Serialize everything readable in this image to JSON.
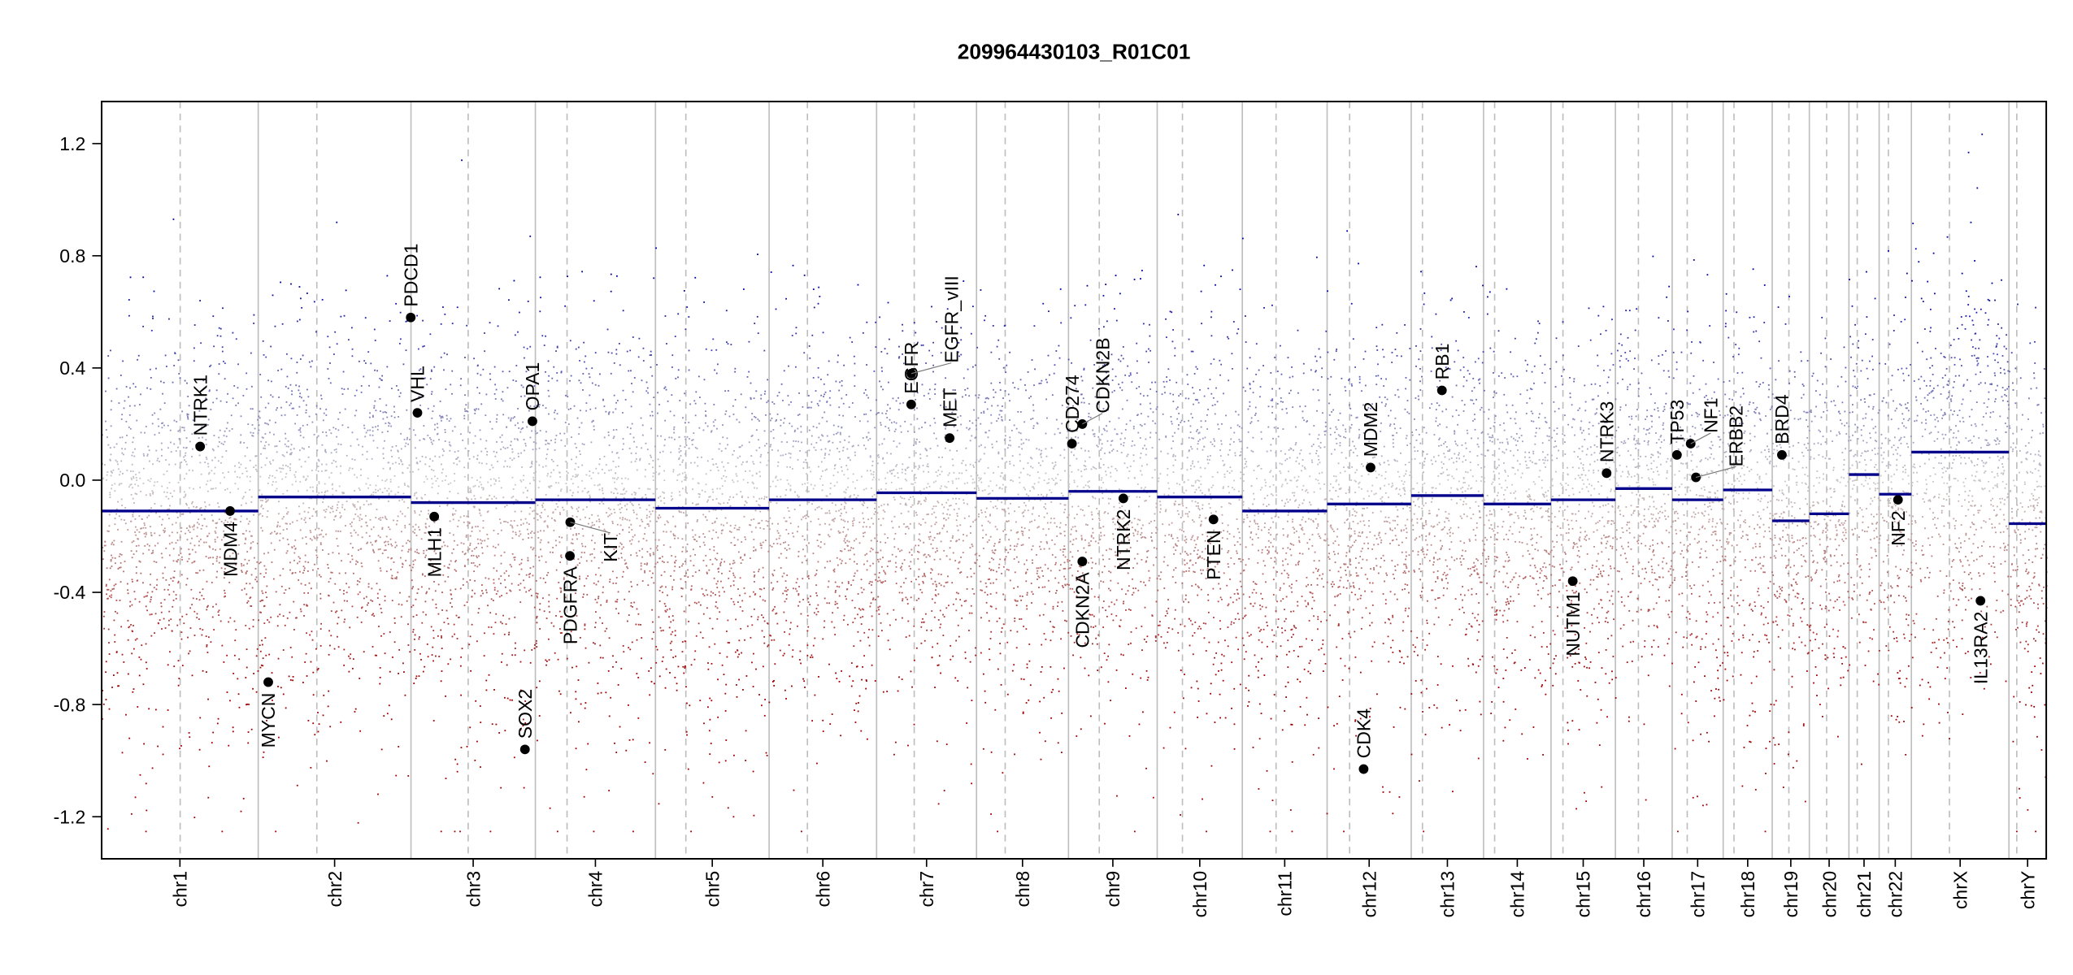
{
  "chart_data": {
    "type": "scatter",
    "title": "209964430103_R01C01",
    "xlabel": "",
    "ylabel": "",
    "ylim": [
      -1.35,
      1.35
    ],
    "y_ticks": [
      "-1.2",
      "-0.8",
      "-0.4",
      "0.0",
      "0.4",
      "0.8",
      "1.2"
    ],
    "y_tick_values": [
      -1.2,
      -0.8,
      -0.4,
      0.0,
      0.4,
      0.8,
      1.2
    ],
    "point_floor": -1.25,
    "colors": {
      "gain": "#0000A0",
      "neutral": "#C8C8C8",
      "loss": "#A00000",
      "segment": "#00008B",
      "gene_point": "#000000",
      "chrom_boundary": "#BEBEBE",
      "centromere": "#BEBEBE"
    },
    "chromosomes": [
      {
        "name": "chr1",
        "length_mb": 249.25,
        "centromere_mb": 125.0,
        "segment_mean": -0.11
      },
      {
        "name": "chr2",
        "length_mb": 243.2,
        "centromere_mb": 93.3,
        "segment_mean": -0.06
      },
      {
        "name": "chr3",
        "length_mb": 198.0,
        "centromere_mb": 91.0,
        "segment_mean": -0.08
      },
      {
        "name": "chr4",
        "length_mb": 191.15,
        "centromere_mb": 50.4,
        "segment_mean": -0.07
      },
      {
        "name": "chr5",
        "length_mb": 180.9,
        "centromere_mb": 48.4,
        "segment_mean": -0.1
      },
      {
        "name": "chr6",
        "length_mb": 171.1,
        "centromere_mb": 61.0,
        "segment_mean": -0.07
      },
      {
        "name": "chr7",
        "length_mb": 159.1,
        "centromere_mb": 59.9,
        "segment_mean": -0.045
      },
      {
        "name": "chr8",
        "length_mb": 146.4,
        "centromere_mb": 45.6,
        "segment_mean": -0.065
      },
      {
        "name": "chr9",
        "length_mb": 141.2,
        "centromere_mb": 49.0,
        "segment_mean": -0.04
      },
      {
        "name": "chr10",
        "length_mb": 135.5,
        "centromere_mb": 40.2,
        "segment_mean": -0.06
      },
      {
        "name": "chr11",
        "length_mb": 135.0,
        "centromere_mb": 53.7,
        "segment_mean": -0.11
      },
      {
        "name": "chr12",
        "length_mb": 133.85,
        "centromere_mb": 35.8,
        "segment_mean": -0.085
      },
      {
        "name": "chr13",
        "length_mb": 115.2,
        "centromere_mb": 17.9,
        "segment_mean": -0.055
      },
      {
        "name": "chr14",
        "length_mb": 107.35,
        "centromere_mb": 17.6,
        "segment_mean": -0.085
      },
      {
        "name": "chr15",
        "length_mb": 102.5,
        "centromere_mb": 19.0,
        "segment_mean": -0.07
      },
      {
        "name": "chr16",
        "length_mb": 90.35,
        "centromere_mb": 36.6,
        "segment_mean": -0.03
      },
      {
        "name": "chr17",
        "length_mb": 81.2,
        "centromere_mb": 24.0,
        "segment_mean": -0.07
      },
      {
        "name": "chr18",
        "length_mb": 78.1,
        "centromere_mb": 17.2,
        "segment_mean": -0.035
      },
      {
        "name": "chr19",
        "length_mb": 59.1,
        "centromere_mb": 26.5,
        "segment_mean": -0.145
      },
      {
        "name": "chr20",
        "length_mb": 63.0,
        "centromere_mb": 27.5,
        "segment_mean": -0.12
      },
      {
        "name": "chr21",
        "length_mb": 48.1,
        "centromere_mb": 13.2,
        "segment_mean": 0.02
      },
      {
        "name": "chr22",
        "length_mb": 51.3,
        "centromere_mb": 14.7,
        "segment_mean": -0.05
      },
      {
        "name": "chrX",
        "length_mb": 155.3,
        "centromere_mb": 60.6,
        "segment_mean": 0.1
      },
      {
        "name": "chrY",
        "length_mb": 59.4,
        "centromere_mb": 12.5,
        "segment_mean": -0.155
      }
    ],
    "genes": [
      {
        "name": "NTRK1",
        "chrom": "chr1",
        "pos_mb": 156.8,
        "value": 0.12,
        "label": "above"
      },
      {
        "name": "MDM4",
        "chrom": "chr1",
        "pos_mb": 204.5,
        "value": -0.11,
        "label": "below"
      },
      {
        "name": "MYCN",
        "chrom": "chr2",
        "pos_mb": 16.0,
        "value": -0.72,
        "label": "below"
      },
      {
        "name": "PDCD1",
        "chrom": "chr2",
        "pos_mb": 242.8,
        "value": 0.58,
        "label": "above"
      },
      {
        "name": "VHL",
        "chrom": "chr3",
        "pos_mb": 10.2,
        "value": 0.24,
        "label": "above"
      },
      {
        "name": "MLH1",
        "chrom": "chr3",
        "pos_mb": 37.0,
        "value": -0.13,
        "label": "below"
      },
      {
        "name": "SOX2",
        "chrom": "chr3",
        "pos_mb": 181.4,
        "value": -0.96,
        "label": "above"
      },
      {
        "name": "OPA1",
        "chrom": "chr3",
        "pos_mb": 193.3,
        "value": 0.21,
        "label": "above"
      },
      {
        "name": "PDGFRA",
        "chrom": "chr4",
        "pos_mb": 55.0,
        "value": -0.27,
        "label": "below"
      },
      {
        "name": "KIT",
        "chrom": "chr4",
        "pos_mb": 55.5,
        "value": -0.15,
        "label": "below"
      },
      {
        "name": "EGFR",
        "chrom": "chr7",
        "pos_mb": 55.1,
        "value": 0.27,
        "label": "above"
      },
      {
        "name": "EGFR_vIII",
        "chrom": "chr7",
        "pos_mb": 55.2,
        "value": 0.38,
        "label": "above"
      },
      {
        "name": "MET",
        "chrom": "chr7",
        "pos_mb": 116.3,
        "value": 0.15,
        "label": "above"
      },
      {
        "name": "CD274",
        "chrom": "chr9",
        "pos_mb": 5.5,
        "value": 0.13,
        "label": "above"
      },
      {
        "name": "CDKN2A",
        "chrom": "chr9",
        "pos_mb": 21.97,
        "value": -0.29,
        "label": "below"
      },
      {
        "name": "CDKN2B",
        "chrom": "chr9",
        "pos_mb": 22.0,
        "value": 0.2,
        "label": "above"
      },
      {
        "name": "NTRK2",
        "chrom": "chr9",
        "pos_mb": 87.3,
        "value": -0.065,
        "label": "below"
      },
      {
        "name": "PTEN",
        "chrom": "chr10",
        "pos_mb": 89.6,
        "value": -0.14,
        "label": "below"
      },
      {
        "name": "CDK4",
        "chrom": "chr12",
        "pos_mb": 58.1,
        "value": -1.03,
        "label": "above"
      },
      {
        "name": "MDM2",
        "chrom": "chr12",
        "pos_mb": 69.2,
        "value": 0.045,
        "label": "above"
      },
      {
        "name": "RB1",
        "chrom": "chr13",
        "pos_mb": 48.9,
        "value": 0.32,
        "label": "above"
      },
      {
        "name": "NUTM1",
        "chrom": "chr15",
        "pos_mb": 34.6,
        "value": -0.36,
        "label": "below"
      },
      {
        "name": "NTRK3",
        "chrom": "chr15",
        "pos_mb": 88.5,
        "value": 0.025,
        "label": "above"
      },
      {
        "name": "TP53",
        "chrom": "chr17",
        "pos_mb": 7.6,
        "value": 0.09,
        "label": "above"
      },
      {
        "name": "NF1",
        "chrom": "chr17",
        "pos_mb": 29.5,
        "value": 0.13,
        "label": "above"
      },
      {
        "name": "ERBB2",
        "chrom": "chr17",
        "pos_mb": 37.8,
        "value": 0.01,
        "label": "above"
      },
      {
        "name": "BRD4",
        "chrom": "chr19",
        "pos_mb": 15.4,
        "value": 0.09,
        "label": "above"
      },
      {
        "name": "NF2",
        "chrom": "chr22",
        "pos_mb": 30.0,
        "value": -0.07,
        "label": "below"
      },
      {
        "name": "IL13RA2",
        "chrom": "chrX",
        "pos_mb": 110.0,
        "value": -0.43,
        "label": "below"
      }
    ],
    "grid": false,
    "legend": "none"
  }
}
